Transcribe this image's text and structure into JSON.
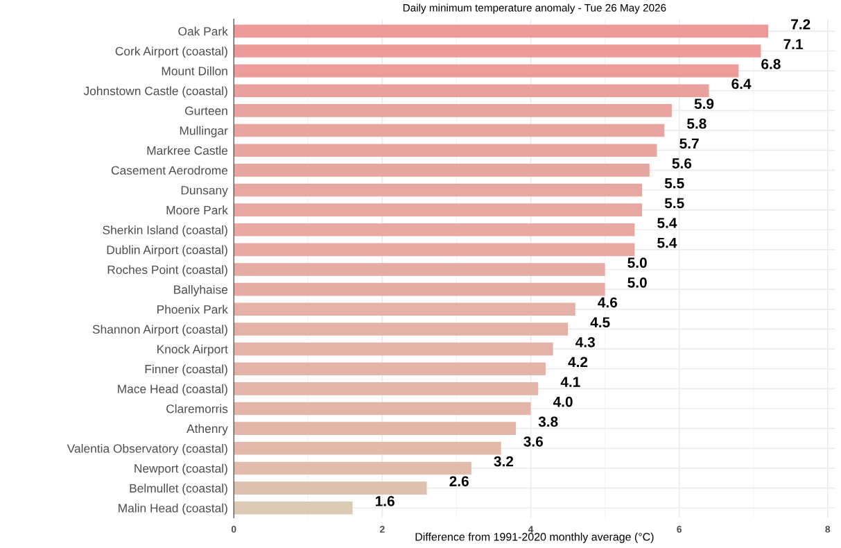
{
  "chart_data": {
    "type": "bar",
    "orientation": "horizontal",
    "title": "Daily minimum temperature anomaly - Tue 26 May 2026",
    "xlabel": "Difference from 1991-2020 monthly average (°C)",
    "categories": [
      "Oak Park",
      "Cork Airport (coastal)",
      "Mount Dillon",
      "Johnstown Castle (coastal)",
      "Gurteen",
      "Mullingar",
      "Markree Castle",
      "Casement Aerodrome",
      "Dunsany",
      "Moore Park",
      "Sherkin Island (coastal)",
      "Dublin Airport (coastal)",
      "Roches Point (coastal)",
      "Ballyhaise",
      "Phoenix Park",
      "Shannon Airport (coastal)",
      "Knock Airport",
      "Finner (coastal)",
      "Mace Head (coastal)",
      "Claremorris",
      "Athenry",
      "Valentia Observatory (coastal)",
      "Newport (coastal)",
      "Belmullet (coastal)",
      "Malin Head (coastal)"
    ],
    "values": [
      7.2,
      7.1,
      6.8,
      6.4,
      5.9,
      5.8,
      5.7,
      5.6,
      5.5,
      5.5,
      5.4,
      5.4,
      5.0,
      5.0,
      4.6,
      4.5,
      4.3,
      4.2,
      4.1,
      4.0,
      3.8,
      3.6,
      3.2,
      2.6,
      1.6
    ],
    "value_labels": [
      "7.2",
      "7.1",
      "6.8",
      "6.4",
      "5.9",
      "5.8",
      "5.7",
      "5.6",
      "5.5",
      "5.5",
      "5.4",
      "5.4",
      "5.0",
      "5.0",
      "4.6",
      "4.5",
      "4.3",
      "4.2",
      "4.1",
      "4.0",
      "3.8",
      "3.6",
      "3.2",
      "2.6",
      "1.6"
    ],
    "colors": [
      "#ec9999",
      "#ec9a9a",
      "#eb9c9b",
      "#eaa09d",
      "#e8a49f",
      "#e8a5a0",
      "#e8a6a0",
      "#e7a7a1",
      "#e7a8a1",
      "#e7a8a1",
      "#e7a9a2",
      "#e7a9a2",
      "#e6aca4",
      "#e6aca4",
      "#e5b0a6",
      "#e4b1a6",
      "#e4b2a7",
      "#e3b3a8",
      "#e3b4a8",
      "#e3b5a8",
      "#e2b7a9",
      "#e2b9aa",
      "#e1bcac",
      "#dfc1af",
      "#dccab4"
    ],
    "xlim": [
      0,
      8.1
    ],
    "xticks": [
      0,
      {
        "value": 1,
        "label": null
      },
      2,
      {
        "value": 3,
        "label": null
      },
      4,
      {
        "value": 5,
        "label": null
      },
      6,
      {
        "value": 7,
        "label": null
      },
      8
    ],
    "grid": true
  }
}
